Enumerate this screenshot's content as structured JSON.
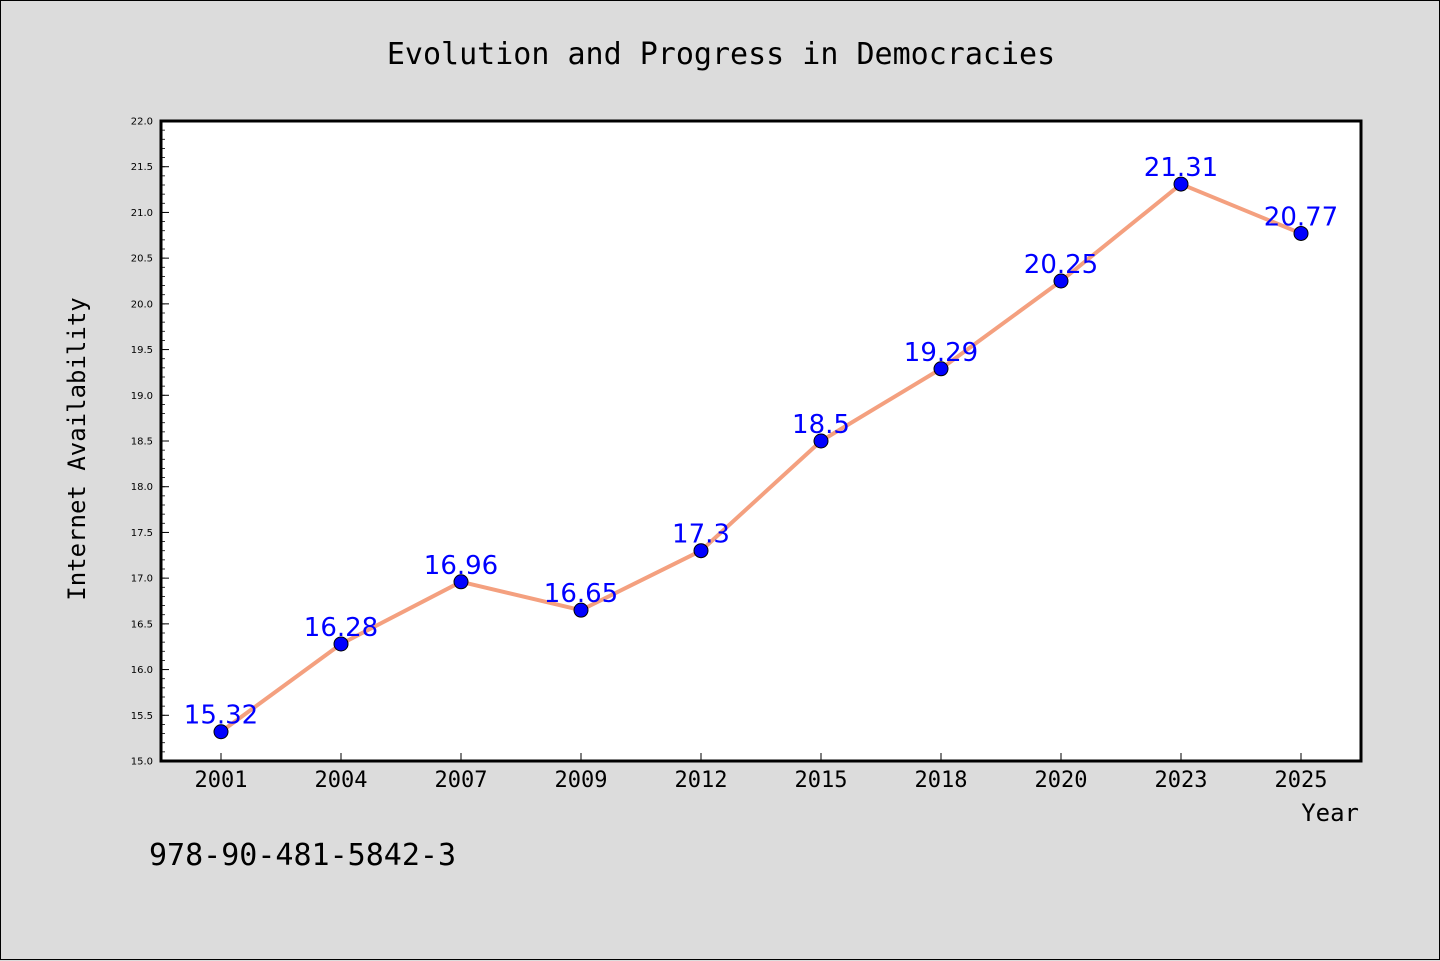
{
  "chart_data": {
    "type": "line",
    "title": "Evolution and Progress in Democracies",
    "xlabel": "Year",
    "ylabel": "Internet Availability",
    "categories": [
      "2001",
      "2004",
      "2007",
      "2009",
      "2012",
      "2015",
      "2018",
      "2020",
      "2023",
      "2025"
    ],
    "series": [
      {
        "values": [
          15.32,
          16.28,
          16.96,
          16.65,
          17.3,
          18.5,
          19.29,
          20.25,
          21.31,
          20.77
        ],
        "labels": [
          "15.32",
          "16.28",
          "16.96",
          "16.65",
          "17.3",
          "18.5",
          "19.29",
          "20.25",
          "21.31",
          "20.77"
        ]
      }
    ],
    "ylim": [
      15.0,
      22.0
    ],
    "yticks": [
      "15.0",
      "15.5",
      "16.0",
      "16.5",
      "17.0",
      "17.5",
      "18.0",
      "18.5",
      "19.0",
      "19.5",
      "20.0",
      "20.5",
      "21.0",
      "21.5",
      "22.0"
    ],
    "grid": false,
    "colors": {
      "line": "#f4a07f",
      "marker": "#0000ff",
      "label": "#0000ff",
      "background": "#dcdcdc",
      "plot_background": "#ffffff"
    }
  },
  "footer": {
    "isbn": "978-90-481-5842-3"
  }
}
